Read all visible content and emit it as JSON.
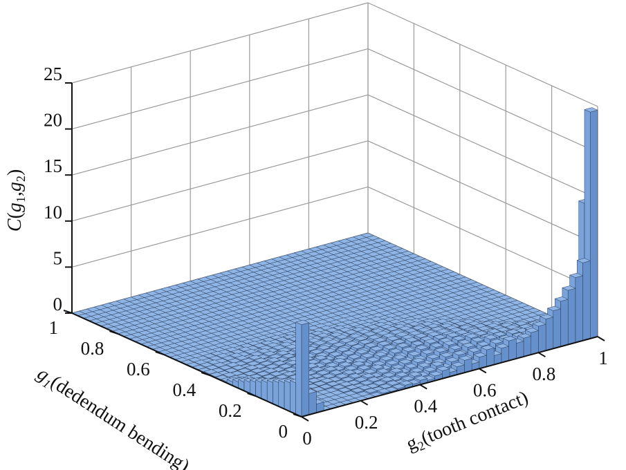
{
  "chart_data": {
    "type": "3d-bar",
    "title": "",
    "zlabel_main": "C",
    "zlabel_open": "(",
    "zlabel_g1": "g",
    "zlabel_g1_sub": "1",
    "zlabel_comma": ",",
    "zlabel_g2": "g",
    "zlabel_g2_sub": "2",
    "zlabel_close": ")",
    "xlabel_g": "g",
    "xlabel_sub": "1",
    "xlabel_rest": "(dedendum bending)",
    "ylabel_g": "g",
    "ylabel_sub": "2",
    "ylabel_rest": "(tooth contact)",
    "zlim": [
      0,
      25
    ],
    "z_ticks": [
      "0",
      "5",
      "10",
      "15",
      "20",
      "25"
    ],
    "g1_ticks": [
      "0",
      "0.2",
      "0.4",
      "0.6",
      "0.8",
      "1"
    ],
    "g2_ticks": [
      "0",
      "0.2",
      "0.4",
      "0.6",
      "0.8",
      "1"
    ],
    "grid_bins": 40,
    "bar_color": "#8fb5e6",
    "peaks": [
      {
        "g1": 0.0,
        "g2": 1.0,
        "value": 24.6
      },
      {
        "g1": 0.0,
        "g2": 0.0,
        "value": 10.0
      },
      {
        "g1": 0.025,
        "g2": 1.0,
        "value": 14.4
      }
    ],
    "ridge_along_g1_at_g2_0": {
      "g1": [
        0.05,
        0.1,
        0.15,
        0.2,
        0.25,
        0.3
      ],
      "value": [
        4.5,
        3.5,
        2.5,
        1.8,
        1.2,
        0.6
      ]
    },
    "ridge_along_g2_at_g1_0": {
      "g2": [
        0.5,
        0.6,
        0.7,
        0.8,
        0.9,
        0.95
      ],
      "value": [
        1.0,
        1.8,
        2.8,
        4.5,
        7.0,
        10.0
      ]
    }
  }
}
